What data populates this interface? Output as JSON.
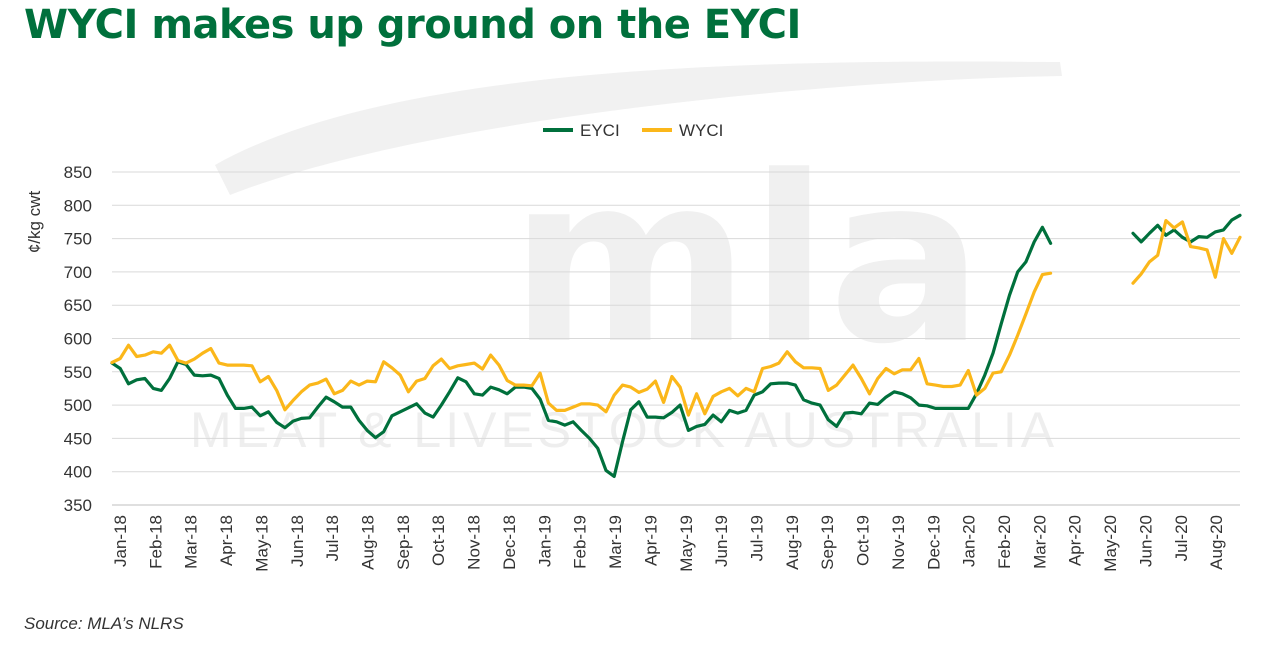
{
  "title": "WYCI makes up ground on the EYCI",
  "source": "Source: MLA’s NLRS",
  "watermark": {
    "logo": "mla",
    "text": "MEAT & LIVESTOCK AUSTRALIA"
  },
  "colors": {
    "EYCI": "#00703c",
    "WYCI": "#fbb71a",
    "title": "#00703c",
    "grid": "#d9d9d9"
  },
  "chart_data": {
    "type": "line",
    "title": "",
    "xlabel": "",
    "ylabel": "¢/kg cwt",
    "ylim": [
      350,
      850
    ],
    "yticks": [
      350,
      400,
      450,
      500,
      550,
      600,
      650,
      700,
      750,
      800,
      850
    ],
    "grid": true,
    "legend_position": "top-center",
    "x_tick_labels": [
      "Jan-18",
      "Feb-18",
      "Mar-18",
      "Apr-18",
      "May-18",
      "Jun-18",
      "Jul-18",
      "Aug-18",
      "Sep-18",
      "Oct-18",
      "Nov-18",
      "Dec-18",
      "Jan-19",
      "Feb-19",
      "Mar-19",
      "Apr-19",
      "May-19",
      "Jun-19",
      "Jul-19",
      "Aug-19",
      "Sep-19",
      "Oct-19",
      "Nov-19",
      "Dec-19",
      "Jan-20",
      "Feb-20",
      "Mar-20",
      "Apr-20",
      "May-20",
      "Jun-20",
      "Jul-20",
      "Aug-20"
    ],
    "x_unit": "weeks",
    "series": [
      {
        "name": "EYCI",
        "color": "#00703c",
        "segments": [
          [
            [
              0,
              563
            ],
            [
              1,
              555
            ],
            [
              2,
              532
            ],
            [
              3,
              538
            ],
            [
              4,
              540
            ],
            [
              5,
              525
            ],
            [
              6,
              522
            ],
            [
              7,
              540
            ],
            [
              8,
              565
            ],
            [
              9,
              561
            ],
            [
              10,
              545
            ],
            [
              11,
              544
            ],
            [
              12,
              545
            ],
            [
              13,
              540
            ],
            [
              14,
              515
            ],
            [
              15,
              495
            ],
            [
              16,
              495
            ],
            [
              17,
              497
            ],
            [
              18,
              484
            ],
            [
              19,
              490
            ],
            [
              20,
              474
            ],
            [
              21,
              466
            ],
            [
              22,
              476
            ],
            [
              23,
              480
            ],
            [
              24,
              481
            ],
            [
              25,
              497
            ],
            [
              26,
              512
            ],
            [
              27,
              505
            ],
            [
              28,
              497
            ],
            [
              29,
              497
            ],
            [
              30,
              477
            ],
            [
              31,
              462
            ],
            [
              32,
              451
            ],
            [
              33,
              460
            ],
            [
              34,
              484
            ],
            [
              35,
              490
            ],
            [
              36,
              496
            ],
            [
              37,
              502
            ],
            [
              38,
              488
            ],
            [
              39,
              482
            ],
            [
              40,
              500
            ],
            [
              41,
              520
            ],
            [
              42,
              541
            ],
            [
              43,
              535
            ],
            [
              44,
              517
            ],
            [
              45,
              515
            ],
            [
              46,
              527
            ],
            [
              47,
              523
            ],
            [
              48,
              517
            ],
            [
              49,
              527
            ],
            [
              50,
              527
            ],
            [
              51,
              525
            ],
            [
              52,
              509
            ],
            [
              53,
              477
            ],
            [
              54,
              475
            ],
            [
              55,
              470
            ],
            [
              56,
              475
            ],
            [
              57,
              462
            ],
            [
              58,
              450
            ],
            [
              59,
              435
            ],
            [
              60,
              402
            ],
            [
              61,
              393
            ],
            [
              62,
              445
            ],
            [
              63,
              493
            ],
            [
              64,
              505
            ],
            [
              65,
              482
            ],
            [
              66,
              482
            ],
            [
              67,
              481
            ],
            [
              68,
              489
            ],
            [
              69,
              500
            ],
            [
              70,
              462
            ],
            [
              71,
              468
            ],
            [
              72,
              471
            ],
            [
              73,
              485
            ],
            [
              74,
              475
            ],
            [
              75,
              492
            ],
            [
              76,
              488
            ],
            [
              77,
              492
            ],
            [
              78,
              515
            ],
            [
              79,
              520
            ],
            [
              80,
              532
            ],
            [
              81,
              533
            ],
            [
              82,
              533
            ],
            [
              83,
              530
            ],
            [
              84,
              508
            ],
            [
              85,
              503
            ],
            [
              86,
              500
            ],
            [
              87,
              478
            ],
            [
              88,
              468
            ],
            [
              89,
              488
            ],
            [
              90,
              489
            ],
            [
              91,
              487
            ],
            [
              92,
              503
            ],
            [
              93,
              501
            ],
            [
              94,
              512
            ],
            [
              95,
              520
            ],
            [
              96,
              517
            ],
            [
              97,
              511
            ],
            [
              98,
              500
            ],
            [
              99,
              499
            ],
            [
              100,
              495
            ],
            [
              101,
              495
            ],
            [
              102,
              495
            ],
            [
              103,
              495
            ],
            [
              104,
              495
            ],
            [
              105,
              517
            ],
            [
              106,
              545
            ],
            [
              107,
              578
            ],
            [
              108,
              622
            ],
            [
              109,
              665
            ],
            [
              110,
              700
            ],
            [
              111,
              715
            ],
            [
              112,
              745
            ],
            [
              113,
              767
            ],
            [
              114,
              743
            ]
          ],
          [
            [
              124,
              758
            ],
            [
              125,
              745
            ],
            [
              126,
              758
            ],
            [
              127,
              770
            ],
            [
              128,
              755
            ],
            [
              129,
              763
            ],
            [
              130,
              752
            ],
            [
              131,
              745
            ],
            [
              132,
              753
            ],
            [
              133,
              752
            ],
            [
              134,
              760
            ],
            [
              135,
              763
            ],
            [
              136,
              778
            ],
            [
              137,
              785
            ]
          ]
        ]
      },
      {
        "name": "WYCI",
        "color": "#fbb71a",
        "segments": [
          [
            [
              0,
              564
            ],
            [
              1,
              570
            ],
            [
              2,
              590
            ],
            [
              3,
              573
            ],
            [
              4,
              575
            ],
            [
              5,
              580
            ],
            [
              6,
              578
            ],
            [
              7,
              590
            ],
            [
              8,
              567
            ],
            [
              9,
              563
            ],
            [
              10,
              569
            ],
            [
              11,
              578
            ],
            [
              12,
              585
            ],
            [
              13,
              563
            ],
            [
              14,
              560
            ],
            [
              15,
              560
            ],
            [
              16,
              560
            ],
            [
              17,
              559
            ],
            [
              18,
              535
            ],
            [
              19,
              543
            ],
            [
              20,
              522
            ],
            [
              21,
              493
            ],
            [
              22,
              507
            ],
            [
              23,
              520
            ],
            [
              24,
              530
            ],
            [
              25,
              533
            ],
            [
              26,
              539
            ],
            [
              27,
              517
            ],
            [
              28,
              522
            ],
            [
              29,
              536
            ],
            [
              30,
              530
            ],
            [
              31,
              536
            ],
            [
              32,
              535
            ],
            [
              33,
              565
            ],
            [
              34,
              556
            ],
            [
              35,
              545
            ],
            [
              36,
              520
            ],
            [
              37,
              536
            ],
            [
              38,
              540
            ],
            [
              39,
              559
            ],
            [
              40,
              569
            ],
            [
              41,
              555
            ],
            [
              42,
              559
            ],
            [
              43,
              561
            ],
            [
              44,
              563
            ],
            [
              45,
              554
            ],
            [
              46,
              575
            ],
            [
              47,
              560
            ],
            [
              48,
              537
            ],
            [
              49,
              530
            ],
            [
              50,
              530
            ],
            [
              51,
              529
            ],
            [
              52,
              548
            ],
            [
              53,
              503
            ],
            [
              54,
              492
            ],
            [
              55,
              492
            ],
            [
              56,
              497
            ],
            [
              57,
              502
            ],
            [
              58,
              502
            ],
            [
              59,
              500
            ],
            [
              60,
              490
            ],
            [
              61,
              515
            ],
            [
              62,
              530
            ],
            [
              63,
              527
            ],
            [
              64,
              519
            ],
            [
              65,
              524
            ],
            [
              66,
              536
            ],
            [
              67,
              504
            ],
            [
              68,
              543
            ],
            [
              69,
              527
            ],
            [
              70,
              485
            ],
            [
              71,
              517
            ],
            [
              72,
              487
            ],
            [
              73,
              513
            ],
            [
              74,
              520
            ],
            [
              75,
              525
            ],
            [
              76,
              514
            ],
            [
              77,
              525
            ],
            [
              78,
              520
            ],
            [
              79,
              555
            ],
            [
              80,
              558
            ],
            [
              81,
              563
            ],
            [
              82,
              580
            ],
            [
              83,
              565
            ],
            [
              84,
              556
            ],
            [
              85,
              556
            ],
            [
              86,
              555
            ],
            [
              87,
              522
            ],
            [
              88,
              530
            ],
            [
              89,
              545
            ],
            [
              90,
              560
            ],
            [
              91,
              540
            ],
            [
              92,
              517
            ],
            [
              93,
              540
            ],
            [
              94,
              555
            ],
            [
              95,
              547
            ],
            [
              96,
              553
            ],
            [
              97,
              553
            ],
            [
              98,
              570
            ],
            [
              99,
              532
            ],
            [
              100,
              530
            ],
            [
              101,
              528
            ],
            [
              102,
              528
            ],
            [
              103,
              530
            ],
            [
              104,
              552
            ],
            [
              105,
              515
            ],
            [
              106,
              525
            ],
            [
              107,
              548
            ],
            [
              108,
              550
            ],
            [
              109,
              575
            ],
            [
              110,
              605
            ],
            [
              111,
              637
            ],
            [
              112,
              670
            ],
            [
              113,
              696
            ],
            [
              114,
              698
            ]
          ],
          [
            [
              124,
              683
            ],
            [
              125,
              697
            ],
            [
              126,
              715
            ],
            [
              127,
              725
            ],
            [
              128,
              777
            ],
            [
              129,
              766
            ],
            [
              130,
              775
            ],
            [
              131,
              738
            ],
            [
              132,
              736
            ],
            [
              133,
              733
            ],
            [
              134,
              692
            ],
            [
              135,
              750
            ],
            [
              136,
              728
            ],
            [
              137,
              752
            ]
          ]
        ]
      }
    ]
  }
}
